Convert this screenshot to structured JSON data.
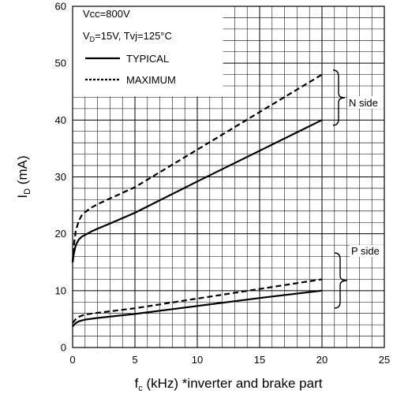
{
  "chart_data": {
    "type": "line",
    "title": "",
    "xlabel_main": "f",
    "xlabel_sub": "c",
    "xlabel_rest": " (kHz) *inverter and brake part",
    "ylabel_main": "I",
    "ylabel_sub": "D",
    "ylabel_rest": " (mA)",
    "xlim": [
      0,
      25
    ],
    "ylim": [
      0,
      60
    ],
    "xticks": [
      0,
      5,
      10,
      15,
      20,
      25
    ],
    "yticks": [
      0,
      10,
      20,
      30,
      40,
      50,
      60
    ],
    "grid": true,
    "legend_position": "top-left",
    "conditions": {
      "line1": "Vcc=800V",
      "line2_pre": "V",
      "line2_sub": "D",
      "line2_post": "=15V, Tvj=125°C"
    },
    "series": [
      {
        "name": "TYPICAL",
        "style": "solid",
        "group": "N side",
        "x": [
          0,
          0.1,
          0.25,
          0.5,
          0.75,
          1,
          1.5,
          2,
          3,
          5,
          10,
          15,
          20
        ],
        "y": [
          15,
          16.5,
          18,
          19,
          19.5,
          19.8,
          20.4,
          20.9,
          21.8,
          23.7,
          29.2,
          34.6,
          40
        ]
      },
      {
        "name": "MAXIMUM",
        "style": "dashed",
        "group": "N side",
        "x": [
          0,
          0.1,
          0.25,
          0.5,
          0.75,
          1,
          1.5,
          2,
          3,
          5,
          10,
          15,
          20
        ],
        "y": [
          15,
          18,
          20.5,
          22.3,
          23.3,
          23.8,
          24.6,
          25.2,
          26.2,
          28.2,
          34.8,
          41.4,
          48
        ]
      },
      {
        "name": "TYPICAL",
        "style": "solid",
        "group": "P side",
        "x": [
          0,
          0.25,
          0.5,
          1,
          2,
          5,
          10,
          15,
          20
        ],
        "y": [
          3.7,
          4.3,
          4.6,
          4.9,
          5.2,
          5.9,
          7.3,
          8.7,
          10
        ]
      },
      {
        "name": "MAXIMUM",
        "style": "dashed",
        "group": "P side",
        "x": [
          0,
          0.25,
          0.5,
          1,
          2,
          5,
          10,
          15,
          20
        ],
        "y": [
          4.3,
          5,
          5.4,
          5.8,
          6.1,
          6.9,
          8.6,
          10.3,
          12
        ]
      }
    ],
    "annotations": {
      "n_side": "N side",
      "p_side": "P side"
    },
    "colors": {
      "line": "#000000",
      "grid": "#000000",
      "background": "#ffffff"
    }
  }
}
